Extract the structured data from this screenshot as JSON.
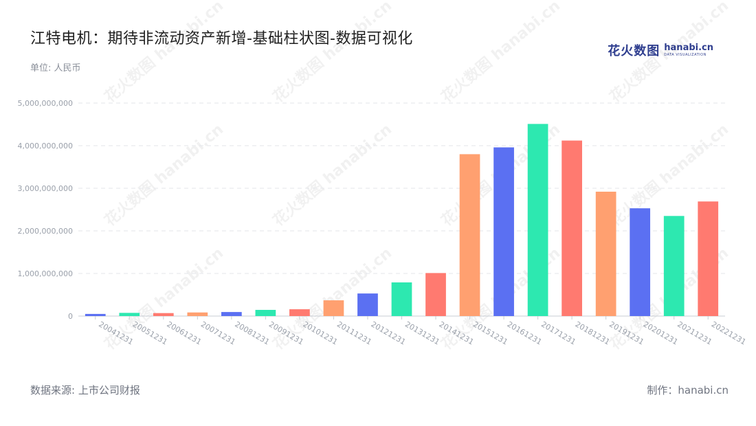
{
  "header": {
    "title": "江特电机：期待非流动资产新增-基础柱状图-数据可视化",
    "unit": "单位: 人民币"
  },
  "logo": {
    "cn": "花火数图",
    "en": "hanabi.cn",
    "sub": "DATA VISUALIZATION"
  },
  "watermark": {
    "cn": "花火数图",
    "en": "hanabi.cn"
  },
  "footer": {
    "source": "数据来源: 上市公司财报",
    "credit": "制作：hanabi.cn"
  },
  "colors": {
    "palette": [
      "#5b70f2",
      "#2de8b0",
      "#ff7a70",
      "#ffa070"
    ],
    "grid": "#e3e5ea",
    "axis": "#c8ccd3"
  },
  "chart_data": {
    "type": "bar",
    "title": "江特电机：期待非流动资产新增-基础柱状图-数据可视化",
    "xlabel": "",
    "ylabel": "",
    "unit": "单位: 人民币",
    "ylim": [
      0,
      5000000000
    ],
    "yticks": [
      0,
      1000000000,
      2000000000,
      3000000000,
      4000000000,
      5000000000
    ],
    "ytick_labels": [
      "0",
      "1,000,000,000",
      "2,000,000,000",
      "3,000,000,000",
      "4,000,000,000",
      "5,000,000,000"
    ],
    "grid": true,
    "categories": [
      "20041231",
      "20051231",
      "20061231",
      "20071231",
      "20081231",
      "20091231",
      "20101231",
      "20111231",
      "20121231",
      "20131231",
      "20141231",
      "20151231",
      "20161231",
      "20171231",
      "20181231",
      "20191231",
      "20201231",
      "20211231",
      "20221231"
    ],
    "values": [
      50000000,
      75000000,
      70000000,
      85000000,
      95000000,
      145000000,
      160000000,
      370000000,
      530000000,
      790000000,
      1010000000,
      3800000000,
      3960000000,
      4510000000,
      4120000000,
      2920000000,
      2530000000,
      2350000000,
      2690000000
    ],
    "colors": [
      "#5b70f2",
      "#2de8b0",
      "#ff7a70",
      "#ffa070",
      "#5b70f2",
      "#2de8b0",
      "#ff7a70",
      "#ffa070",
      "#5b70f2",
      "#2de8b0",
      "#ff7a70",
      "#ffa070",
      "#5b70f2",
      "#2de8b0",
      "#ff7a70",
      "#ffa070",
      "#5b70f2",
      "#2de8b0",
      "#ff7a70"
    ]
  }
}
